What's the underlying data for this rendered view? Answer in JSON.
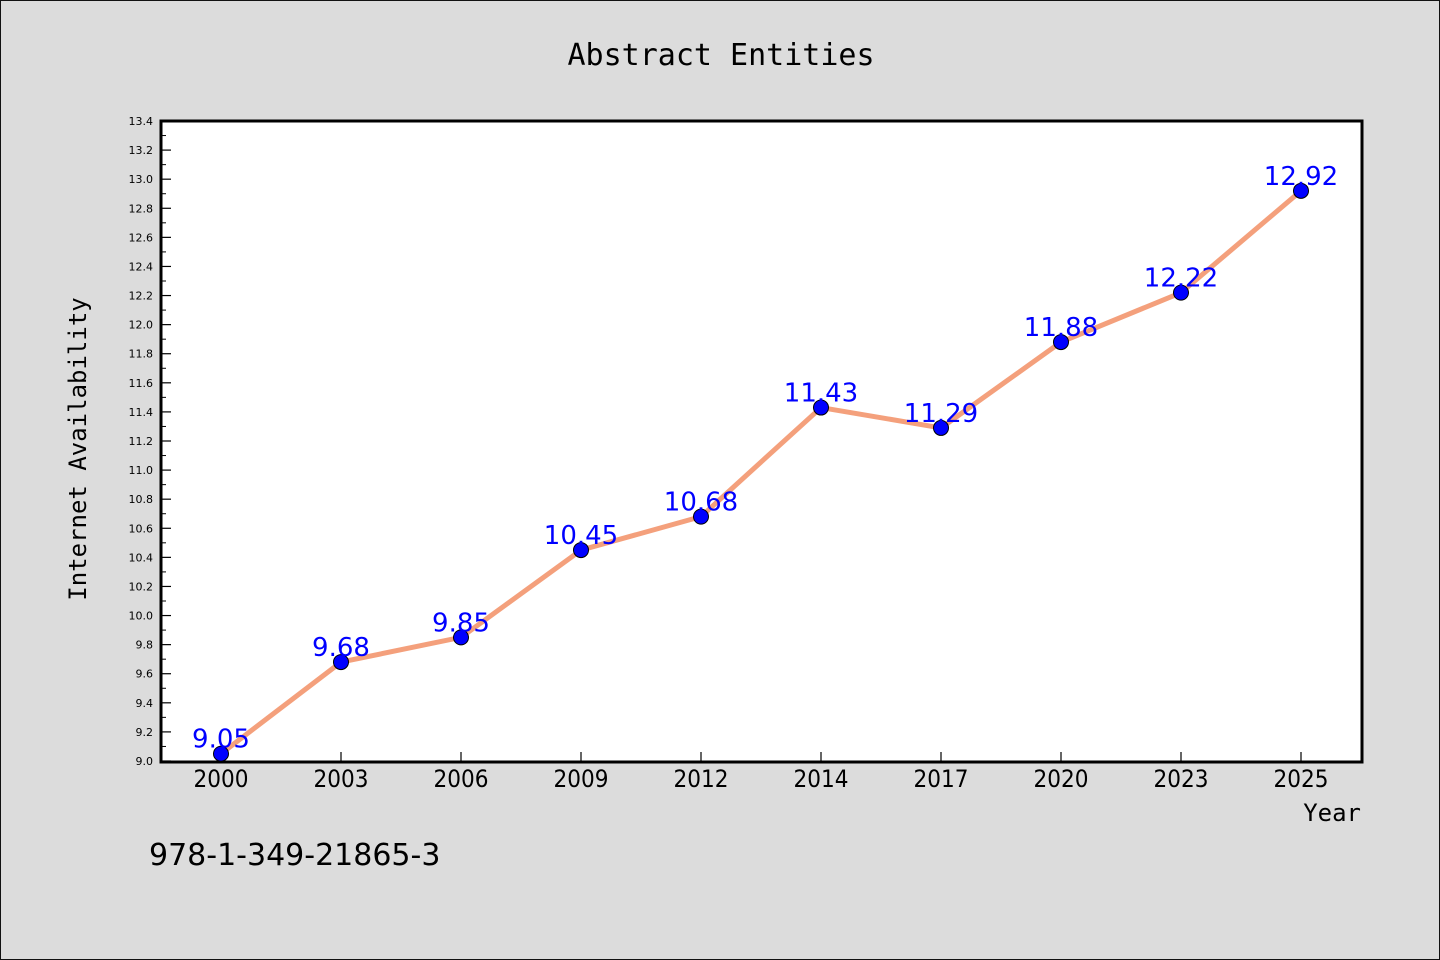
{
  "colors": {
    "background": "#dcdcdc",
    "plot_background": "#ffffff",
    "line": "#f4a07c",
    "marker": "#0000ff",
    "data_label": "#0000ff"
  },
  "footer": {
    "isbn": "978-1-349-21865-3"
  },
  "chart_data": {
    "type": "line",
    "title": "Abstract Entities",
    "xlabel": "Year",
    "ylabel": "Internet Availability",
    "categories": [
      "2000",
      "2003",
      "2006",
      "2009",
      "2012",
      "2014",
      "2017",
      "2020",
      "2023",
      "2025"
    ],
    "series": [
      {
        "values": [
          9.05,
          9.68,
          9.85,
          10.45,
          10.68,
          11.43,
          11.29,
          11.88,
          12.22,
          12.92
        ],
        "labels": [
          "9.05",
          "9.68",
          "9.85",
          "10.45",
          "10.68",
          "11.43",
          "11.29",
          "11.88",
          "12.22",
          "12.92"
        ]
      }
    ],
    "ylim": [
      9.0,
      13.4
    ],
    "yticks": [
      "9.0",
      "9.2",
      "9.4",
      "9.6",
      "9.8",
      "10.0",
      "10.2",
      "10.4",
      "10.6",
      "10.8",
      "11.0",
      "11.2",
      "11.4",
      "11.6",
      "11.8",
      "12.0",
      "12.2",
      "12.4",
      "12.6",
      "12.8",
      "13.0",
      "13.2",
      "13.4"
    ],
    "grid": false,
    "legend": "none"
  }
}
